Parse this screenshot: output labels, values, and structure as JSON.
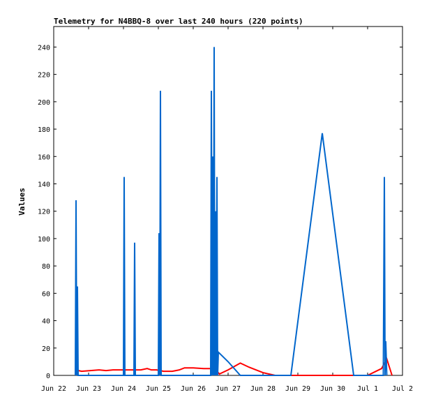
{
  "chart_data": {
    "type": "line",
    "title": "Telemetry for N4BBQ-8 over last 240 hours (220 points)",
    "xlabel": "",
    "ylabel": "Values",
    "x_unit": "days since Jun 22 00:00",
    "xlim": [
      0,
      10
    ],
    "ylim": [
      0,
      255
    ],
    "grid": false,
    "legend": "none",
    "x_ticks": [
      {
        "x": 0,
        "label": "Jun 22"
      },
      {
        "x": 1,
        "label": "Jun 23"
      },
      {
        "x": 2,
        "label": "Jun 24"
      },
      {
        "x": 3,
        "label": "Jun 25"
      },
      {
        "x": 4,
        "label": "Jun 26"
      },
      {
        "x": 5,
        "label": "Jun 27"
      },
      {
        "x": 6,
        "label": "Jun 28"
      },
      {
        "x": 7,
        "label": "Jun 29"
      },
      {
        "x": 8,
        "label": "Jun 30"
      },
      {
        "x": 9,
        "label": "Jul 1"
      },
      {
        "x": 10,
        "label": "Jul 2"
      }
    ],
    "y_ticks": [
      0,
      20,
      40,
      60,
      80,
      100,
      120,
      140,
      160,
      180,
      200,
      220,
      240
    ],
    "series": [
      {
        "color": "#ff0000",
        "points": [
          [
            0.62,
            4
          ],
          [
            0.8,
            3
          ],
          [
            1.05,
            3.5
          ],
          [
            1.3,
            4
          ],
          [
            1.5,
            3.5
          ],
          [
            1.7,
            4
          ],
          [
            2.0,
            4
          ],
          [
            2.3,
            4
          ],
          [
            2.5,
            4
          ],
          [
            2.68,
            5
          ],
          [
            2.8,
            4
          ],
          [
            2.95,
            4
          ],
          [
            3.15,
            3
          ],
          [
            3.4,
            3
          ],
          [
            3.6,
            4
          ],
          [
            3.75,
            5.5
          ],
          [
            4.0,
            5.5
          ],
          [
            4.3,
            5
          ],
          [
            4.5,
            5
          ],
          [
            4.65,
            4
          ],
          [
            4.75,
            1
          ],
          [
            5.0,
            4
          ],
          [
            5.35,
            9
          ],
          [
            5.6,
            6
          ],
          [
            6.0,
            2
          ],
          [
            6.35,
            0
          ],
          [
            6.5,
            0
          ],
          [
            9.0,
            0
          ],
          [
            9.4,
            5
          ],
          [
            9.55,
            12
          ],
          [
            9.7,
            0
          ]
        ]
      },
      {
        "color": "#0066cc",
        "points": [
          [
            0.62,
            0
          ],
          [
            0.64,
            128
          ],
          [
            0.66,
            0
          ],
          [
            0.68,
            65
          ],
          [
            0.7,
            0
          ],
          [
            2.0,
            0
          ],
          [
            2.02,
            145
          ],
          [
            2.04,
            0
          ],
          [
            2.3,
            0
          ],
          [
            2.32,
            97
          ],
          [
            2.34,
            0
          ],
          [
            3.0,
            0
          ],
          [
            3.02,
            104
          ],
          [
            3.04,
            0
          ],
          [
            3.06,
            208
          ],
          [
            3.08,
            0
          ],
          [
            4.5,
            0
          ],
          [
            4.52,
            208
          ],
          [
            4.54,
            0
          ],
          [
            4.56,
            160
          ],
          [
            4.58,
            0
          ],
          [
            4.6,
            240
          ],
          [
            4.62,
            0
          ],
          [
            4.64,
            120
          ],
          [
            4.66,
            0
          ],
          [
            4.68,
            145
          ],
          [
            4.7,
            0
          ],
          [
            4.72,
            17
          ],
          [
            5.0,
            10
          ],
          [
            5.35,
            0
          ],
          [
            6.8,
            0
          ],
          [
            7.7,
            177
          ],
          [
            8.6,
            0
          ],
          [
            9.45,
            0
          ],
          [
            9.48,
            145
          ],
          [
            9.5,
            0
          ],
          [
            9.52,
            25
          ],
          [
            9.55,
            0
          ]
        ]
      }
    ]
  }
}
